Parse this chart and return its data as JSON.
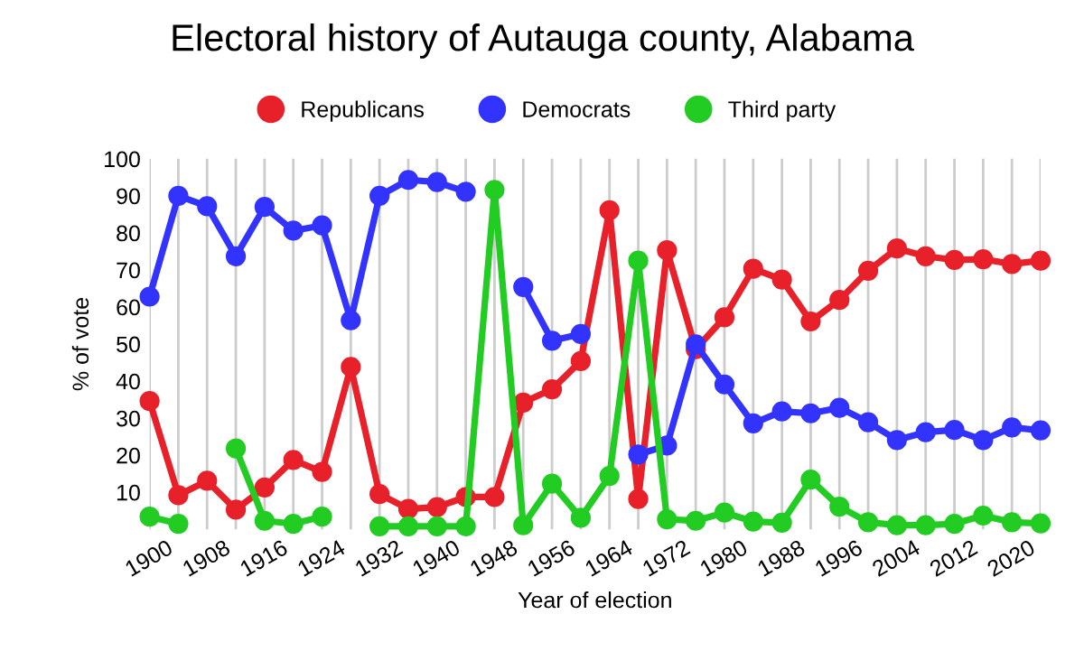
{
  "chart_data": {
    "type": "line",
    "title": "Electoral history of Autauga county, Alabama",
    "xlabel": "Year of election",
    "ylabel": "% of vote",
    "x": [
      1900,
      1904,
      1908,
      1912,
      1916,
      1920,
      1924,
      1928,
      1932,
      1936,
      1940,
      1944,
      1948,
      1952,
      1956,
      1960,
      1964,
      1968,
      1972,
      1976,
      1980,
      1984,
      1988,
      1992,
      1996,
      2000,
      2004,
      2008,
      2012,
      2016,
      2020,
      2024
    ],
    "series": [
      {
        "name": "Republicans",
        "color": "#e8202a",
        "values": [
          34.6,
          9.2,
          13.1,
          5.3,
          11.3,
          18.7,
          15.5,
          43.8,
          9.5,
          5.5,
          6,
          8.7,
          8.7,
          34.2,
          37.8,
          45.4,
          86.1,
          8.2,
          75.3,
          48.6,
          57.2,
          70.3,
          67.4,
          56.1,
          61.9,
          69.8,
          75.8,
          73.7,
          72.7,
          72.9,
          71.6,
          72.5
        ]
      },
      {
        "name": "Democrats",
        "color": "#3333ff",
        "values": [
          62.8,
          90,
          87.2,
          73.7,
          87,
          80.6,
          82,
          56.4,
          90,
          94.3,
          93.7,
          91.1,
          null,
          65.4,
          50.9,
          52.7,
          null,
          20.2,
          22.6,
          49.9,
          39.1,
          28.6,
          31.8,
          31.3,
          32.8,
          28.9,
          24.1,
          26.2,
          26.8,
          24.1,
          27.5,
          26.7
        ]
      },
      {
        "name": "Third party",
        "color": "#22cc22",
        "values": [
          3.4,
          1.5,
          null,
          21.8,
          2.3,
          1.5,
          3.4,
          null,
          0.8,
          0.8,
          0.8,
          0.8,
          91.6,
          1.1,
          12.3,
          3.1,
          14.4,
          72.5,
          2.7,
          2.3,
          4.5,
          2.1,
          1.8,
          13.4,
          6.1,
          1.9,
          1.1,
          1.1,
          1.5,
          3.7,
          1.9,
          1.6
        ]
      }
    ],
    "xlim": [
      1900,
      2024
    ],
    "ylim": [
      0,
      100
    ],
    "xticks": [
      1900,
      {
        "value": 1904,
        "label": null
      },
      1908,
      {
        "value": 1912,
        "label": null
      },
      1916,
      {
        "value": 1920,
        "label": null
      },
      1924,
      {
        "value": 1928,
        "label": null
      },
      1932,
      {
        "value": 1936,
        "label": null
      },
      1940,
      {
        "value": 1944,
        "label": null
      },
      1948,
      {
        "value": 1952,
        "label": null
      },
      1956,
      {
        "value": 1960,
        "label": null
      },
      1964,
      {
        "value": 1968,
        "label": null
      },
      1972,
      {
        "value": 1976,
        "label": null
      },
      1980,
      {
        "value": 1984,
        "label": null
      },
      1988,
      {
        "value": 1992,
        "label": null
      },
      1996,
      {
        "value": 2000,
        "label": null
      },
      2004,
      {
        "value": 2008,
        "label": null
      },
      2012,
      {
        "value": 2016,
        "label": null
      },
      2020,
      {
        "value": 2024,
        "label": null
      }
    ],
    "yticks": [
      10,
      20,
      30,
      40,
      50,
      60,
      70,
      80,
      90,
      100
    ],
    "grid": "x",
    "legend": "top",
    "marker": "circle",
    "line_style": "solid"
  }
}
